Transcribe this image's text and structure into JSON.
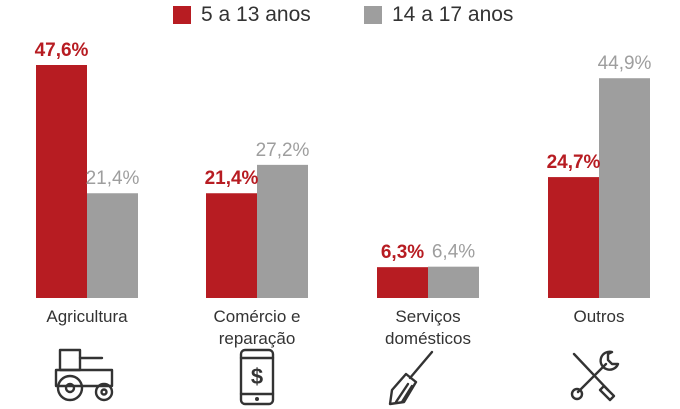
{
  "chart_data": {
    "type": "bar",
    "categories": [
      [
        "Agricultura"
      ],
      [
        "Comércio e",
        "reparação"
      ],
      [
        "Serviços",
        "domésticos"
      ],
      [
        "Outros"
      ]
    ],
    "series": [
      {
        "name": "5 a 13 anos",
        "color": "#b71c22",
        "values": [
          47.6,
          21.4,
          6.3,
          24.7
        ],
        "labels": [
          "47,6%",
          "21,4%",
          "6,3%",
          "24,7%"
        ]
      },
      {
        "name": "14 a 17 anos",
        "color": "#9e9e9e",
        "values": [
          21.4,
          27.2,
          6.4,
          44.9
        ],
        "labels": [
          "21,4%",
          "27,2%",
          "6,4%",
          "44,9%"
        ]
      }
    ],
    "category_icons": [
      "tractor-icon",
      "phone-dollar-icon",
      "broom-icon",
      "tools-icon"
    ],
    "ylim": [
      0,
      47.6
    ],
    "grid": false,
    "legend_position": "top"
  }
}
